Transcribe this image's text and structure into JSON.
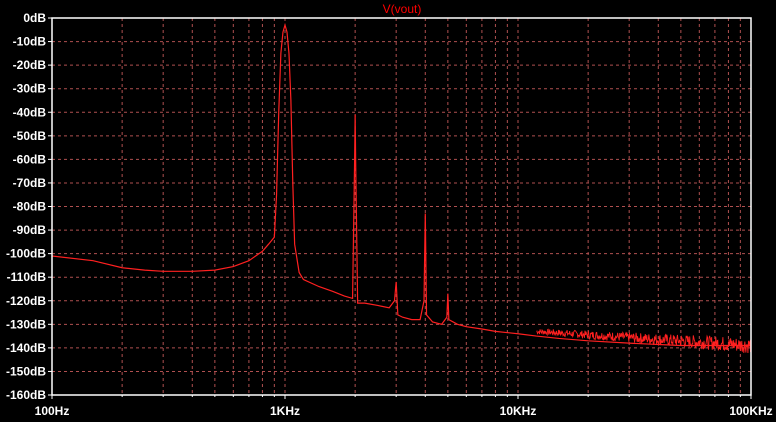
{
  "colors": {
    "background": "#000000",
    "axis": "#ffffff",
    "grid": "#b05050",
    "trace": "#ff2020",
    "title": "#ff0000",
    "text": "#ffffff"
  },
  "chart_data": {
    "type": "line",
    "title": "V(vout)",
    "xlabel": "",
    "ylabel": "",
    "x_scale": "log",
    "xlim": [
      100,
      100000
    ],
    "ylim": [
      -160,
      0
    ],
    "grid": true,
    "y_ticks": [
      "0dB",
      "-10dB",
      "-20dB",
      "-30dB",
      "-40dB",
      "-50dB",
      "-60dB",
      "-70dB",
      "-80dB",
      "-90dB",
      "-100dB",
      "-110dB",
      "-120dB",
      "-130dB",
      "-140dB",
      "-150dB",
      "-160dB"
    ],
    "x_ticks": [
      "100Hz",
      "1KHz",
      "10KHz",
      "100KHz"
    ],
    "series": [
      {
        "name": "",
        "x": [
          100,
          150,
          200,
          250,
          300,
          400,
          500,
          600,
          700,
          800,
          850,
          900,
          920,
          940,
          960,
          980,
          1000,
          1020,
          1040,
          1060,
          1080,
          1100,
          1150,
          1200,
          1400,
          1600,
          1800,
          1950,
          1990,
          2000,
          2010,
          2050,
          2200,
          2500,
          2800,
          2950,
          3000,
          3050,
          3200,
          3500,
          3800,
          3950,
          4000,
          4050,
          4300,
          4700,
          4950,
          5000,
          5050,
          5500,
          6000,
          7000,
          8000,
          10000,
          12000,
          15000,
          20000,
          30000,
          50000,
          70000,
          100000
        ],
        "y": [
          -101,
          -103,
          -106,
          -107,
          -107.5,
          -107.5,
          -107,
          -105.5,
          -103,
          -99,
          -96,
          -93,
          -75,
          -40,
          -15,
          -6,
          -3,
          -6,
          -15,
          -35,
          -70,
          -96,
          -108,
          -111,
          -114,
          -116,
          -118,
          -119,
          -60,
          -41,
          -60,
          -121,
          -121,
          -122,
          -123,
          -120,
          -112,
          -126,
          -127,
          -128,
          -128,
          -120,
          -83,
          -126,
          -129,
          -130,
          -127,
          -117,
          -128,
          -130,
          -131,
          -132,
          -133,
          -134,
          -135,
          -136,
          -137,
          -138,
          -139,
          -139,
          -139
        ]
      }
    ]
  }
}
